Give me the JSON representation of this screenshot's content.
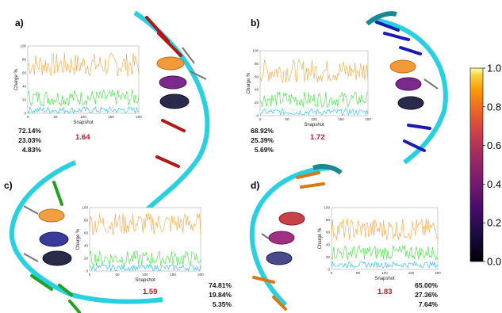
{
  "colors": {
    "orange": "#f2a541",
    "green": "#3ee03e",
    "blue": "#22b8f0",
    "helix": "#32d8e8",
    "red": "#c0162b"
  },
  "panels": [
    {
      "letter": "a)",
      "percentages": [
        "72.14%",
        "23.03%",
        "4.83%"
      ],
      "score": "1.64",
      "stick_color": "#b01818"
    },
    {
      "letter": "b)",
      "percentages": [
        "68.92%",
        "25.39%",
        "5.69%"
      ],
      "score": "1.72",
      "stick_color": "#1a1ab0"
    },
    {
      "letter": "c)",
      "percentages": [
        "74.81%",
        "19.84%",
        "5.35%"
      ],
      "score": "1.59",
      "stick_color": "#22a022"
    },
    {
      "letter": "d)",
      "percentages": [
        "65.00%",
        "27.36%",
        "7.64%"
      ],
      "score": "1.83",
      "stick_color": "#d87818"
    }
  ],
  "colorbar": {
    "ticks": [
      "0.0",
      "0.2",
      "0.4",
      "0.6",
      "0.8",
      "1.0"
    ],
    "colormap": "inferno"
  },
  "chart_data": [
    {
      "type": "line",
      "xlabel": "Snapshot",
      "ylabel": "Charge %",
      "xlim": [
        0,
        200
      ],
      "ylim": [
        0,
        100
      ],
      "xticks": [
        "0",
        "50",
        "100",
        "150",
        "200"
      ],
      "yticks": [
        "0",
        "20",
        "40",
        "60",
        "80",
        "100"
      ],
      "series": [
        {
          "color": "#f2a541",
          "mean": 72.14,
          "amp": 18
        },
        {
          "color": "#3ee03e",
          "mean": 23.03,
          "amp": 12
        },
        {
          "color": "#22b8f0",
          "mean": 4.83,
          "amp": 5
        }
      ]
    },
    {
      "type": "line",
      "xlabel": "Snapshot",
      "ylabel": "Charge %",
      "xlim": [
        0,
        200
      ],
      "ylim": [
        0,
        100
      ],
      "xticks": [
        "0",
        "50",
        "100",
        "150",
        "200"
      ],
      "yticks": [
        "0",
        "20",
        "40",
        "60",
        "80",
        "100"
      ],
      "series": [
        {
          "color": "#f2a541",
          "mean": 68.92,
          "amp": 18
        },
        {
          "color": "#3ee03e",
          "mean": 25.39,
          "amp": 12
        },
        {
          "color": "#22b8f0",
          "mean": 5.69,
          "amp": 5
        }
      ]
    },
    {
      "type": "line",
      "xlabel": "Snapshot",
      "ylabel": "Charge %",
      "xlim": [
        0,
        200
      ],
      "ylim": [
        0,
        100
      ],
      "xticks": [
        "0",
        "50",
        "100",
        "150",
        "200"
      ],
      "yticks": [
        "0",
        "20",
        "40",
        "60",
        "80",
        "100"
      ],
      "series": [
        {
          "color": "#f2a541",
          "mean": 74.81,
          "amp": 18
        },
        {
          "color": "#3ee03e",
          "mean": 19.84,
          "amp": 12
        },
        {
          "color": "#22b8f0",
          "mean": 5.35,
          "amp": 5
        }
      ]
    },
    {
      "type": "line",
      "xlabel": "Snapshot",
      "ylabel": "Charge %",
      "xlim": [
        0,
        200
      ],
      "ylim": [
        0,
        100
      ],
      "xticks": [
        "0",
        "50",
        "100",
        "150",
        "200"
      ],
      "yticks": [
        "0",
        "20",
        "40",
        "60",
        "80",
        "100"
      ],
      "series": [
        {
          "color": "#f2a541",
          "mean": 65.0,
          "amp": 18
        },
        {
          "color": "#3ee03e",
          "mean": 27.36,
          "amp": 12
        },
        {
          "color": "#22b8f0",
          "mean": 7.64,
          "amp": 5
        }
      ]
    }
  ]
}
